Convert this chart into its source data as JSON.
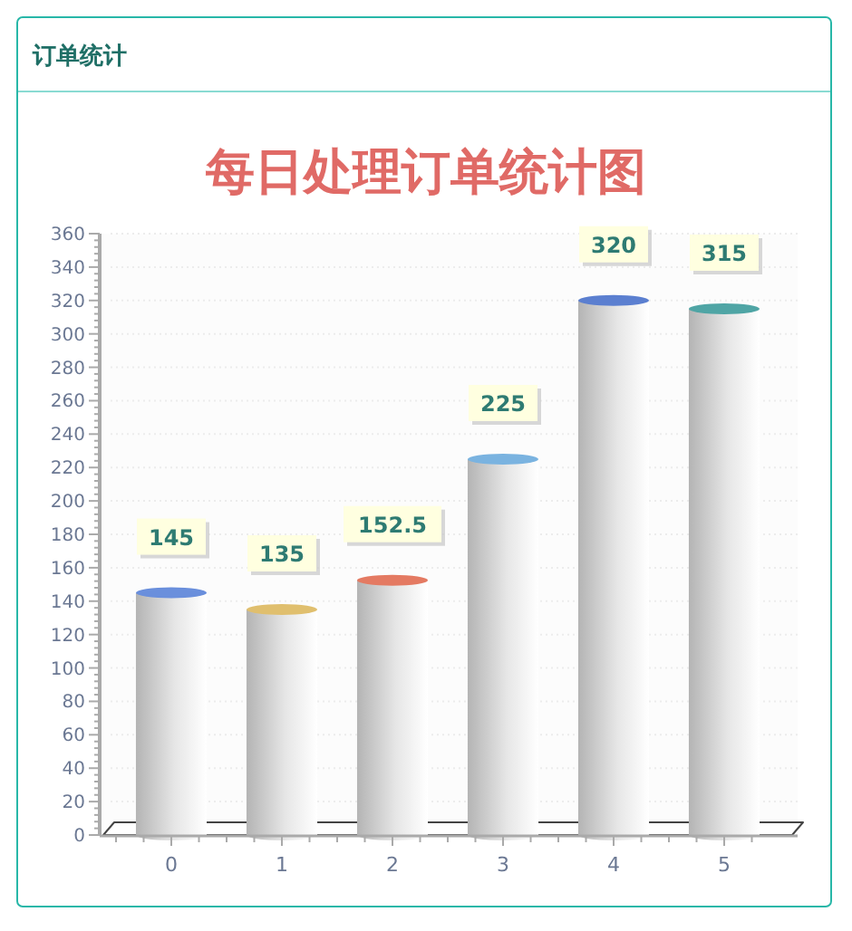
{
  "chart_data": {
    "type": "bar",
    "title": "每日处理订单统计图",
    "annotations": [
      "订单统计"
    ],
    "categories": [
      "0",
      "1",
      "2",
      "3",
      "4",
      "5"
    ],
    "values": [
      145,
      135,
      152.5,
      225,
      320,
      315
    ],
    "ylim": [
      0,
      360
    ],
    "yticks": [
      0,
      {
        "value": 4,
        "label": null
      },
      {
        "value": 8,
        "label": null
      },
      {
        "value": 12,
        "label": null
      },
      {
        "value": 16,
        "label": null
      },
      20,
      {
        "value": 24,
        "label": null
      },
      {
        "value": 28,
        "label": null
      },
      {
        "value": 32,
        "label": null
      },
      {
        "value": 36,
        "label": null
      },
      40,
      {
        "value": 44,
        "label": null
      },
      {
        "value": 48,
        "label": null
      },
      {
        "value": 52,
        "label": null
      },
      {
        "value": 56,
        "label": null
      },
      60,
      {
        "value": 64,
        "label": null
      },
      {
        "value": 68,
        "label": null
      },
      {
        "value": 72,
        "label": null
      },
      {
        "value": 76,
        "label": null
      },
      80,
      {
        "value": 84,
        "label": null
      },
      {
        "value": 88,
        "label": null
      },
      {
        "value": 92,
        "label": null
      },
      {
        "value": 96,
        "label": null
      },
      100,
      {
        "value": 104,
        "label": null
      },
      {
        "value": 108,
        "label": null
      },
      {
        "value": 112,
        "label": null
      },
      {
        "value": 116,
        "label": null
      },
      120,
      {
        "value": 124,
        "label": null
      },
      {
        "value": 128,
        "label": null
      },
      {
        "value": 132,
        "label": null
      },
      {
        "value": 136,
        "label": null
      },
      140,
      {
        "value": 144,
        "label": null
      },
      {
        "value": 148,
        "label": null
      },
      {
        "value": 152,
        "label": null
      },
      {
        "value": 156,
        "label": null
      },
      160,
      {
        "value": 164,
        "label": null
      },
      {
        "value": 168,
        "label": null
      },
      {
        "value": 172,
        "label": null
      },
      {
        "value": 176,
        "label": null
      },
      180,
      {
        "value": 184,
        "label": null
      },
      {
        "value": 188,
        "label": null
      },
      {
        "value": 192,
        "label": null
      },
      {
        "value": 196,
        "label": null
      },
      200,
      {
        "value": 204,
        "label": null
      },
      {
        "value": 208,
        "label": null
      },
      {
        "value": 212,
        "label": null
      },
      {
        "value": 216,
        "label": null
      },
      220,
      {
        "value": 224,
        "label": null
      },
      {
        "value": 228,
        "label": null
      },
      {
        "value": 232,
        "label": null
      },
      {
        "value": 236,
        "label": null
      },
      240,
      {
        "value": 244,
        "label": null
      },
      {
        "value": 248,
        "label": null
      },
      {
        "value": 252,
        "label": null
      },
      {
        "value": 256,
        "label": null
      },
      260,
      {
        "value": 264,
        "label": null
      },
      {
        "value": 268,
        "label": null
      },
      {
        "value": 272,
        "label": null
      },
      {
        "value": 276,
        "label": null
      },
      280,
      {
        "value": 284,
        "label": null
      },
      {
        "value": 288,
        "label": null
      },
      {
        "value": 292,
        "label": null
      },
      {
        "value": 296,
        "label": null
      },
      300,
      {
        "value": 304,
        "label": null
      },
      {
        "value": 308,
        "label": null
      },
      {
        "value": 312,
        "label": null
      },
      {
        "value": 316,
        "label": null
      },
      320,
      {
        "value": 324,
        "label": null
      },
      {
        "value": 328,
        "label": null
      },
      {
        "value": 332,
        "label": null
      },
      {
        "value": 336,
        "label": null
      },
      340,
      {
        "value": 344,
        "label": null
      },
      {
        "value": 348,
        "label": null
      },
      {
        "value": 352,
        "label": null
      },
      {
        "value": 356,
        "label": null
      },
      360
    ],
    "grid": "y",
    "data_labels": true
  }
}
